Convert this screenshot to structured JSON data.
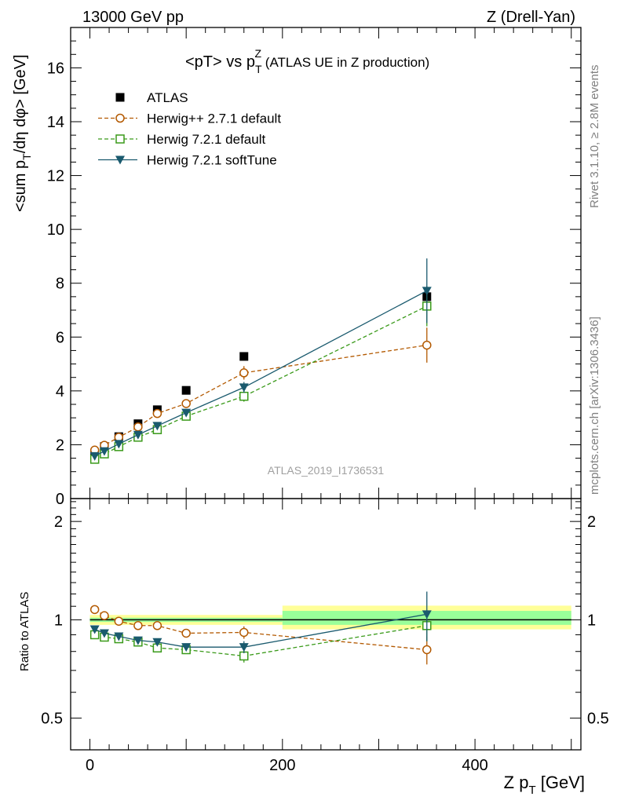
{
  "header": {
    "left": "13000 GeV pp",
    "right": "Z (Drell-Yan)"
  },
  "side_text": {
    "rivet": "Rivet 3.1.10, ≥ 2.8M events",
    "mcplots": "mcplots.cern.ch [arXiv:1306.3436]"
  },
  "watermark": "ATLAS_2019_I1736531",
  "chart_data": [
    {
      "type": "scatter",
      "panel": "main",
      "title": {
        "main": "<pT> vs p",
        "sup": "Z",
        "sub": "T",
        "suffix": " (ATLAS UE in Z production)"
      },
      "ylabel": {
        "pre": "<sum p",
        "sub": "T",
        "post": "/dη dφ> [GeV]"
      },
      "xlim": [
        -20,
        510
      ],
      "ylim": [
        0,
        17.5
      ],
      "yticks": [
        0,
        2,
        4,
        6,
        8,
        10,
        12,
        14,
        16
      ],
      "legend_placement": "top-left",
      "series": [
        {
          "name": "ATLAS",
          "color": "#000000",
          "marker": "filled-square",
          "line": "none",
          "x": [
            5,
            15,
            30,
            50,
            70,
            100,
            160,
            350
          ],
          "y": [
            1.68,
            1.93,
            2.3,
            2.78,
            3.3,
            4.02,
            5.28,
            7.5
          ]
        },
        {
          "name": "Herwig++ 2.7.1 default",
          "color": "#b35900",
          "marker": "open-circle",
          "line": "dashed",
          "x": [
            5,
            15,
            30,
            50,
            70,
            100,
            160,
            350
          ],
          "y": [
            1.8,
            1.98,
            2.28,
            2.66,
            3.16,
            3.53,
            4.67,
            5.7
          ],
          "err": [
            0.05,
            0.05,
            0.05,
            0.05,
            0.07,
            0.08,
            0.25,
            0.65
          ]
        },
        {
          "name": "Herwig 7.2.1 default",
          "color": "#3a9a1a",
          "marker": "open-square",
          "line": "dashed",
          "x": [
            5,
            15,
            30,
            50,
            70,
            100,
            160,
            350
          ],
          "y": [
            1.46,
            1.66,
            1.93,
            2.28,
            2.56,
            3.06,
            3.8,
            7.15
          ],
          "err": [
            0.04,
            0.04,
            0.05,
            0.05,
            0.06,
            0.08,
            0.2,
            0.75
          ]
        },
        {
          "name": "Herwig 7.2.1 softTune",
          "color": "#1a5a6e",
          "marker": "filled-triangle-down",
          "line": "solid",
          "x": [
            5,
            15,
            30,
            50,
            70,
            100,
            160,
            350
          ],
          "y": [
            1.58,
            1.76,
            2.03,
            2.37,
            2.7,
            3.19,
            4.13,
            7.72
          ],
          "err": [
            0.04,
            0.04,
            0.05,
            0.05,
            0.06,
            0.08,
            0.2,
            1.2
          ]
        }
      ]
    },
    {
      "type": "scatter",
      "panel": "ratio",
      "ylabel": "Ratio to ATLAS",
      "xlabel": {
        "pre": "Z p",
        "sub": "T",
        "post": " [GeV]"
      },
      "xlim": [
        -20,
        510
      ],
      "ylim": [
        0.4,
        2.35
      ],
      "xticks": [
        0,
        200,
        400
      ],
      "yticks": [
        0.5,
        1,
        2
      ],
      "log_y": true,
      "data_band": {
        "x_edges": [
          0,
          200,
          500
        ],
        "stat_sys_yellow": [
          [
            0.965,
            1.035
          ],
          [
            0.935,
            1.105
          ]
        ],
        "stat_green": [
          [
            0.985,
            1.015
          ],
          [
            0.965,
            1.065
          ]
        ],
        "yellow_color": "#ffff99",
        "green_color": "#99ff99"
      },
      "series": [
        {
          "name": "Herwig++ 2.7.1 default",
          "color": "#b35900",
          "x": [
            5,
            15,
            30,
            50,
            70,
            100,
            160,
            350
          ],
          "y": [
            1.075,
            1.03,
            0.99,
            0.96,
            0.96,
            0.91,
            0.915,
            0.81
          ],
          "err": [
            0.01,
            0.01,
            0.01,
            0.01,
            0.01,
            0.015,
            0.04,
            0.08
          ]
        },
        {
          "name": "Herwig 7.2.1 default",
          "color": "#3a9a1a",
          "x": [
            5,
            15,
            30,
            50,
            70,
            100,
            160,
            350
          ],
          "y": [
            0.9,
            0.885,
            0.875,
            0.855,
            0.82,
            0.81,
            0.775,
            0.96
          ],
          "err": [
            0.01,
            0.01,
            0.01,
            0.01,
            0.01,
            0.015,
            0.035,
            0.1
          ]
        },
        {
          "name": "Herwig 7.2.1 softTune",
          "color": "#1a5a6e",
          "x": [
            5,
            15,
            30,
            50,
            70,
            100,
            160,
            350
          ],
          "y": [
            0.935,
            0.91,
            0.89,
            0.865,
            0.855,
            0.825,
            0.825,
            1.04
          ],
          "err": [
            0.01,
            0.01,
            0.01,
            0.01,
            0.01,
            0.015,
            0.035,
            0.18
          ]
        }
      ]
    }
  ]
}
